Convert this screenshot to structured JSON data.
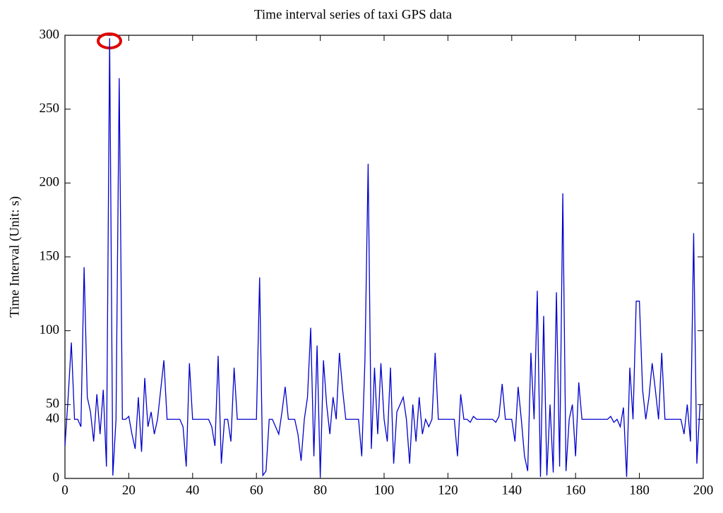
{
  "chart_data": {
    "type": "line",
    "title": "Time interval series of taxi GPS data",
    "y_label": "Time Interval (Unit: s)",
    "x": [
      0,
      1,
      2,
      3,
      4,
      5,
      6,
      7,
      8,
      9,
      10,
      11,
      12,
      13,
      14,
      15,
      16,
      17,
      18,
      19,
      20,
      21,
      22,
      23,
      24,
      25,
      26,
      27,
      28,
      29,
      30,
      31,
      32,
      33,
      34,
      35,
      36,
      37,
      38,
      39,
      40,
      41,
      42,
      43,
      44,
      45,
      46,
      47,
      48,
      49,
      50,
      51,
      52,
      53,
      54,
      55,
      56,
      57,
      58,
      59,
      60,
      61,
      62,
      63,
      64,
      65,
      66,
      67,
      68,
      69,
      70,
      71,
      72,
      73,
      74,
      75,
      76,
      77,
      78,
      79,
      80,
      81,
      82,
      83,
      84,
      85,
      86,
      87,
      88,
      89,
      90,
      91,
      92,
      93,
      94,
      95,
      96,
      97,
      98,
      99,
      100,
      101,
      102,
      103,
      104,
      105,
      106,
      107,
      108,
      109,
      110,
      111,
      112,
      113,
      114,
      115,
      116,
      117,
      118,
      119,
      120,
      121,
      122,
      123,
      124,
      125,
      126,
      127,
      128,
      129,
      130,
      131,
      132,
      133,
      134,
      135,
      136,
      137,
      138,
      139,
      140,
      141,
      142,
      143,
      144,
      145,
      146,
      147,
      148,
      149,
      150,
      151,
      152,
      153,
      154,
      155,
      156,
      157,
      158,
      159,
      160,
      161,
      162,
      163,
      164,
      165,
      166,
      167,
      168,
      169,
      170,
      171,
      172,
      173,
      174,
      175,
      176,
      177,
      178,
      179,
      180,
      181,
      182,
      183,
      184,
      185,
      186,
      187,
      188,
      189,
      190,
      191,
      192,
      193,
      194,
      195,
      196,
      197,
      198,
      199
    ],
    "series": [
      {
        "name": "Time interval",
        "color": "#0000cc",
        "values": [
          22,
          55,
          92,
          40,
          40,
          35,
          143,
          55,
          45,
          25,
          57,
          30,
          60,
          8,
          298,
          2,
          40,
          271,
          40,
          40,
          42,
          30,
          20,
          55,
          18,
          68,
          35,
          45,
          30,
          40,
          60,
          80,
          40,
          40,
          40,
          40,
          40,
          35,
          8,
          78,
          40,
          40,
          40,
          40,
          40,
          40,
          35,
          22,
          83,
          10,
          40,
          40,
          25,
          75,
          40,
          40,
          40,
          40,
          40,
          40,
          40,
          136,
          2,
          5,
          40,
          40,
          35,
          30,
          45,
          62,
          40,
          40,
          40,
          30,
          12,
          40,
          55,
          102,
          15,
          90,
          1,
          80,
          50,
          30,
          55,
          40,
          85,
          60,
          40,
          40,
          40,
          40,
          40,
          15,
          80,
          213,
          20,
          75,
          30,
          78,
          40,
          25,
          75,
          10,
          45,
          50,
          55,
          40,
          10,
          50,
          25,
          55,
          30,
          40,
          35,
          40,
          85,
          40,
          40,
          40,
          40,
          40,
          40,
          15,
          57,
          40,
          40,
          38,
          42,
          40,
          40,
          40,
          40,
          40,
          40,
          38,
          42,
          64,
          40,
          40,
          40,
          25,
          62,
          40,
          15,
          5,
          85,
          40,
          127,
          1,
          110,
          2,
          50,
          4,
          126,
          8,
          193,
          5,
          40,
          50,
          15,
          65,
          40,
          40,
          40,
          40,
          40,
          40,
          40,
          40,
          40,
          42,
          38,
          40,
          35,
          48,
          1,
          75,
          40,
          120,
          120,
          60,
          40,
          55,
          78,
          60,
          40,
          85,
          40,
          40,
          40,
          40,
          40,
          40,
          30,
          50,
          25,
          166,
          10,
          50
        ]
      }
    ],
    "xlim": [
      0,
      200
    ],
    "ylim": [
      0,
      300
    ],
    "xticks": [
      0,
      20,
      40,
      60,
      80,
      100,
      120,
      140,
      160,
      180,
      200
    ],
    "yticks": [
      0,
      40,
      50,
      100,
      150,
      200,
      250,
      300
    ]
  }
}
